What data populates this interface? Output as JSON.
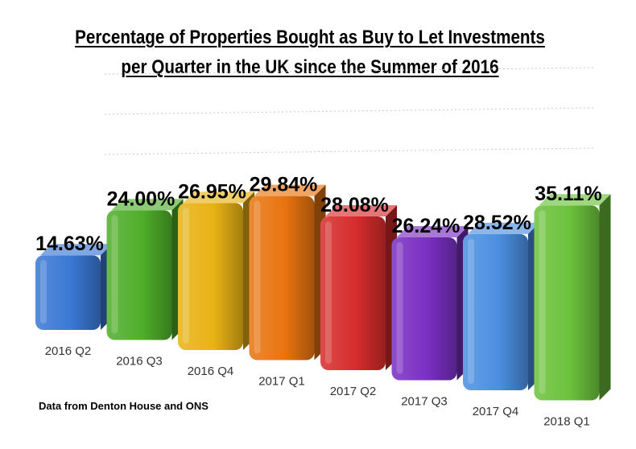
{
  "title_line1": "Percentage of Properties Bought as Buy to Let Investments",
  "title_line2": "per Quarter in the UK since the Summer of 2016",
  "footnote": "Data from Denton House and ONS",
  "chart_data": {
    "type": "bar",
    "categories": [
      "2016 Q2",
      "2016 Q3",
      "2016 Q4",
      "2017 Q1",
      "2017 Q2",
      "2017 Q3",
      "2017 Q4",
      "2018 Q1"
    ],
    "values": [
      14.63,
      24.0,
      26.95,
      29.84,
      28.08,
      26.24,
      28.52,
      35.11
    ],
    "labels": [
      "14.63%",
      "24.00%",
      "26.95%",
      "29.84%",
      "28.08%",
      "26.24%",
      "28.52%",
      "35.11%"
    ],
    "colors": [
      "#3a78d4",
      "#4fae2a",
      "#e8b215",
      "#e8740f",
      "#d62c2c",
      "#7a2fc2",
      "#4b8fe0",
      "#6cc23c"
    ],
    "ylim": [
      0,
      40
    ],
    "grid": true,
    "legend": "none"
  }
}
